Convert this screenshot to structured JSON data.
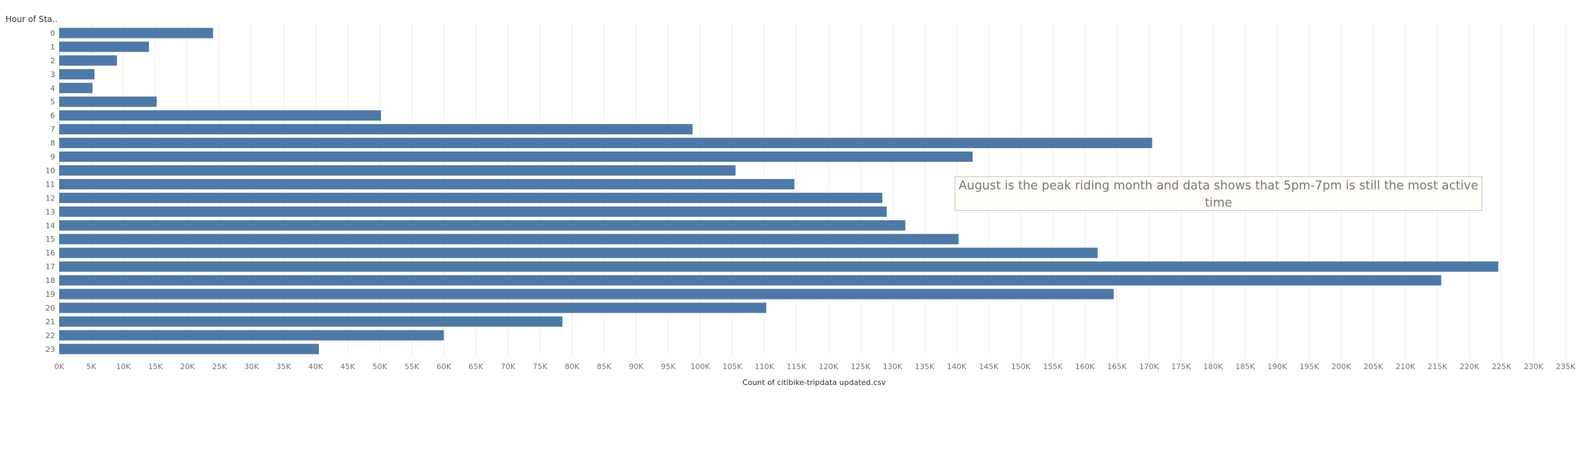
{
  "annotation": "August is the peak riding month and data shows that 5pm-7pm is still the most active time",
  "chart_data": {
    "type": "bar",
    "orientation": "horizontal",
    "ylabel": "Hour of Sta..",
    "xlabel": "Count of citibike-tripdata  updated.csv",
    "categories": [
      "0",
      "1",
      "2",
      "3",
      "4",
      "5",
      "6",
      "7",
      "8",
      "9",
      "10",
      "11",
      "12",
      "13",
      "14",
      "15",
      "16",
      "17",
      "18",
      "19",
      "20",
      "21",
      "22",
      "23"
    ],
    "values": [
      24000,
      14000,
      9000,
      5500,
      5200,
      15200,
      50200,
      98800,
      170500,
      142500,
      105500,
      114700,
      128400,
      129100,
      132000,
      140300,
      162000,
      224500,
      215600,
      164500,
      110300,
      78500,
      60000,
      40500
    ],
    "xlim": [
      0,
      235000
    ],
    "xticks": [
      "0K",
      "5K",
      "10K",
      "15K",
      "20K",
      "25K",
      "30K",
      "35K",
      "40K",
      "45K",
      "50K",
      "55K",
      "60K",
      "65K",
      "70K",
      "75K",
      "80K",
      "85K",
      "90K",
      "95K",
      "100K",
      "105K",
      "110K",
      "115K",
      "120K",
      "125K",
      "130K",
      "135K",
      "140K",
      "145K",
      "150K",
      "155K",
      "160K",
      "165K",
      "170K",
      "175K",
      "180K",
      "185K",
      "190K",
      "195K",
      "200K",
      "205K",
      "210K",
      "215K",
      "220K",
      "225K",
      "230K",
      "235K"
    ],
    "grid": true,
    "colors": {
      "bar": "#4e79a7",
      "grid": "#ececec"
    }
  }
}
